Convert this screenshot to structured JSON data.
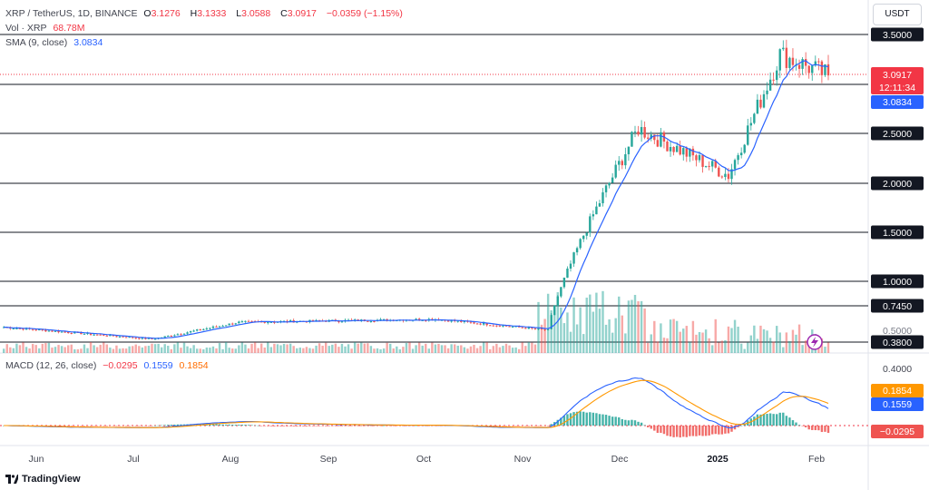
{
  "header": {
    "symbol": "XRP / TetherUS, 1D, BINANCE",
    "open_label": "O",
    "open": "3.1276",
    "high_label": "H",
    "high": "3.1333",
    "low_label": "L",
    "low": "3.0588",
    "close_label": "C",
    "close": "3.0917",
    "change": "−0.0359 (−1.15%)",
    "vol_label": "Vol · XRP",
    "vol": "68.78M",
    "sma_label": "SMA (9, close)",
    "sma": "3.0834"
  },
  "currency": "USDT",
  "colors": {
    "up": "#26a69a",
    "down": "#ef5350",
    "sma": "#2962ff",
    "macd": "#2962ff",
    "signal": "#ff9800",
    "line": "#131722"
  },
  "price_axis": {
    "levels": [
      "3.5000",
      "3.0000",
      "2.5000",
      "2.0000",
      "1.5000",
      "1.0000",
      "0.7450",
      "0.3800"
    ],
    "tick_0_5": "0.5000",
    "last_price": "3.0917",
    "countdown": "12:11:34",
    "sma_tag": "3.0834"
  },
  "macd": {
    "label": "MACD (12, 26, close)",
    "hist": "−0.0295",
    "macd": "0.1559",
    "signal": "0.1854",
    "axis_tick": "0.4000"
  },
  "time_axis": [
    "Jun",
    "Jul",
    "Aug",
    "Sep",
    "Oct",
    "Nov",
    "Dec",
    "2025",
    "Feb"
  ],
  "logo": "TradingView",
  "chart_data": {
    "type": "candlestick",
    "price_ylim": [
      0.22,
      3.8
    ],
    "horizontal_levels": [
      3.5,
      3.0,
      2.5,
      2.0,
      1.5,
      1.0,
      0.745,
      0.38
    ],
    "key_closes": [
      {
        "date": "2024-05-20",
        "close": 0.53
      },
      {
        "date": "2024-07-05",
        "close": 0.41
      },
      {
        "date": "2024-08-01",
        "close": 0.58
      },
      {
        "date": "2024-10-01",
        "close": 0.61
      },
      {
        "date": "2024-11-05",
        "close": 0.5
      },
      {
        "date": "2024-12-03",
        "close": 2.55
      },
      {
        "date": "2024-12-31",
        "close": 2.08
      },
      {
        "date": "2025-01-16",
        "close": 3.3
      },
      {
        "date": "2025-01-31",
        "close": 3.09
      }
    ]
  }
}
